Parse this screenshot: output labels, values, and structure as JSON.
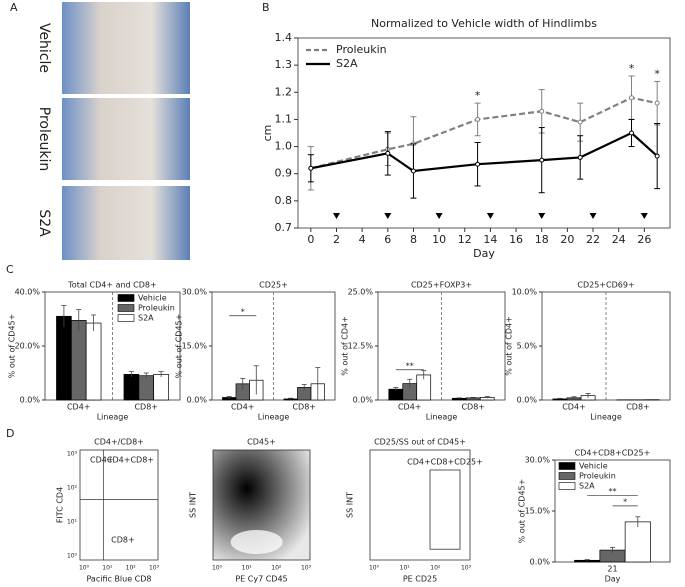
{
  "panel_labels": [
    "A",
    "B",
    "C",
    "D"
  ],
  "photos": {
    "labels": [
      "Vehicle",
      "Proleukin",
      "S2A"
    ]
  },
  "chart_data": [
    {
      "type": "line",
      "title": "Normalized to Vehicle width of Hindlimbs",
      "xlabel": "Day",
      "ylabel": "cm",
      "x": [
        0,
        6,
        8,
        13,
        18,
        21,
        25,
        27
      ],
      "series": [
        {
          "name": "Proleukin",
          "color": "#808080",
          "linestyle": "dashed",
          "values": [
            0.92,
            0.99,
            1.01,
            1.1,
            1.13,
            1.09,
            1.18,
            1.16
          ],
          "errors": [
            0.08,
            0.06,
            0.1,
            0.06,
            0.08,
            0.07,
            0.08,
            0.08
          ]
        },
        {
          "name": "S2A",
          "color": "#000000",
          "linestyle": "solid",
          "values": [
            0.92,
            0.975,
            0.91,
            0.935,
            0.95,
            0.96,
            1.05,
            0.965
          ],
          "errors": [
            0.05,
            0.08,
            0.1,
            0.08,
            0.12,
            0.08,
            0.05,
            0.12
          ]
        }
      ],
      "xlim": [
        -1,
        28
      ],
      "xticks": [
        0,
        2,
        4,
        6,
        8,
        10,
        12,
        14,
        16,
        18,
        20,
        22,
        24,
        26
      ],
      "ylim": [
        0.7,
        1.4
      ],
      "yticks": [
        0.7,
        0.8,
        0.9,
        {
          "value": 1,
          "label": "1.0"
        },
        1.1,
        1.2,
        1.3,
        1.4
      ],
      "legend": "upper left",
      "dosing_days": [
        2,
        6,
        10,
        14,
        18,
        22,
        26
      ],
      "annotations": [
        {
          "x": 13,
          "text": "*"
        },
        {
          "x": 25,
          "text": "*"
        },
        {
          "x": 27,
          "text": "*"
        }
      ]
    },
    {
      "type": "bar",
      "title": "Total CD4+ and CD8+",
      "xlabel": "Lineage",
      "ylabel": "% out of CD45+",
      "categories": [
        "CD4+",
        "CD8+"
      ],
      "separator": true,
      "legend": "upper right",
      "series": [
        {
          "name": "Vehicle",
          "color": "#000000",
          "values": [
            31,
            9.5
          ],
          "errors": [
            4,
            1
          ]
        },
        {
          "name": "Proleukin",
          "color": "#666666",
          "values": [
            29.5,
            9
          ],
          "errors": [
            4,
            1
          ]
        },
        {
          "name": "S2A",
          "color": "#ffffff",
          "values": [
            28.5,
            9.5
          ],
          "errors": [
            3,
            1
          ]
        }
      ],
      "ylim": [
        0,
        40
      ],
      "yticks": [
        {
          "value": 0,
          "label": "0.0%"
        },
        {
          "value": 20,
          "label": "20.0%"
        },
        {
          "value": 40,
          "label": "40.0%"
        }
      ]
    },
    {
      "type": "bar",
      "title": "CD25+",
      "xlabel": "Lineage",
      "ylabel": "% out of CD45+",
      "categories": [
        "CD4+",
        "CD8+"
      ],
      "separator": true,
      "series": [
        {
          "name": "Vehicle",
          "color": "#000000",
          "values": [
            0.7,
            0.3
          ],
          "errors": [
            0.3,
            0.2
          ]
        },
        {
          "name": "Proleukin",
          "color": "#666666",
          "values": [
            4.5,
            3.5
          ],
          "errors": [
            1.5,
            0.8
          ]
        },
        {
          "name": "S2A",
          "color": "#ffffff",
          "values": [
            5.5,
            4.5
          ],
          "errors": [
            4,
            4.5
          ]
        }
      ],
      "ylim": [
        0,
        30
      ],
      "yticks": [
        {
          "value": 0,
          "label": "0.0%"
        },
        {
          "value": 15,
          "label": "15.0%"
        },
        {
          "value": 30,
          "label": "30.0%"
        }
      ],
      "annotations": [
        "*"
      ]
    },
    {
      "type": "bar",
      "title": "CD25+FOXP3+",
      "xlabel": "Lineage",
      "ylabel": "% out of CD4+",
      "categories": [
        "CD4+",
        "CD8+"
      ],
      "separator": true,
      "series": [
        {
          "name": "Vehicle",
          "color": "#000000",
          "values": [
            2.5,
            0.4
          ],
          "errors": [
            0.4,
            0.1
          ]
        },
        {
          "name": "Proleukin",
          "color": "#666666",
          "values": [
            3.8,
            0.5
          ],
          "errors": [
            1,
            0.1
          ]
        },
        {
          "name": "S2A",
          "color": "#ffffff",
          "values": [
            5.8,
            0.6
          ],
          "errors": [
            1,
            0.2
          ]
        }
      ],
      "ylim": [
        0,
        25
      ],
      "yticks": [
        {
          "value": 0,
          "label": "0.0%"
        },
        {
          "value": 12.5,
          "label": "12.5%"
        },
        {
          "value": 25,
          "label": "25.0%"
        }
      ],
      "annotations": [
        "**"
      ]
    },
    {
      "type": "bar",
      "title": "CD25+CD69+",
      "xlabel": "Lineage",
      "ylabel": "% out of CD4+",
      "categories": [
        "CD4+",
        "CD8+"
      ],
      "separator": true,
      "series": [
        {
          "name": "Vehicle",
          "color": "#000000",
          "values": [
            0.1,
            0.02
          ],
          "errors": [
            0.05,
            0.01
          ]
        },
        {
          "name": "Proleukin",
          "color": "#666666",
          "values": [
            0.2,
            0.02
          ],
          "errors": [
            0.1,
            0.01
          ]
        },
        {
          "name": "S2A",
          "color": "#ffffff",
          "values": [
            0.4,
            0.03
          ],
          "errors": [
            0.2,
            0.01
          ]
        }
      ],
      "ylim": [
        0,
        10
      ],
      "yticks": [
        {
          "value": 0,
          "label": "0.0%"
        },
        {
          "value": 5,
          "label": "5.0%"
        },
        {
          "value": 10,
          "label": "10.0%"
        }
      ]
    },
    {
      "type": "bar",
      "title": "CD4+CD8+CD25+",
      "xlabel": "Day",
      "ylabel": "% out of CD45+",
      "categories": [
        "21"
      ],
      "separator": false,
      "legend": "upper left",
      "series": [
        {
          "name": "Vehicle",
          "color": "#000000",
          "values": [
            0.5
          ],
          "errors": [
            0.2
          ]
        },
        {
          "name": "Proleukin",
          "color": "#666666",
          "values": [
            3.5
          ],
          "errors": [
            0.8
          ]
        },
        {
          "name": "S2A",
          "color": "#ffffff",
          "values": [
            11.8
          ],
          "errors": [
            1.5
          ]
        }
      ],
      "ylim": [
        0,
        30
      ],
      "yticks": [
        {
          "value": 0,
          "label": "0.0%"
        },
        {
          "value": 15,
          "label": "15.0%"
        },
        {
          "value": 30,
          "label": "30.0%"
        }
      ],
      "annotations": [
        "*",
        "**"
      ]
    }
  ],
  "flow_plots": [
    {
      "title": "CD4+/CD8+",
      "xlabel": "Pacific Blue CD8",
      "ylabel": "FITC CD4",
      "xticks": [
        "10⁰",
        "10¹",
        "10²",
        "10³"
      ],
      "yticks": [
        "10⁰",
        "10¹",
        "10²",
        "10³"
      ],
      "gates": [
        "CD4+",
        "CD4+CD8+",
        "CD8+"
      ]
    },
    {
      "title": "CD45+",
      "xlabel": "PE Cy7 CD45",
      "ylabel": "SS INT",
      "xticks": [
        "10⁰",
        "10¹",
        "10²",
        "10³"
      ],
      "gates": []
    },
    {
      "title": "CD25/SS out of CD45+",
      "xlabel": "PE CD25",
      "ylabel": "SS INT",
      "xticks": [
        "10⁰",
        "10¹",
        "10²",
        "10³"
      ],
      "gates": [
        "CD4+CD8+CD25+"
      ]
    }
  ]
}
